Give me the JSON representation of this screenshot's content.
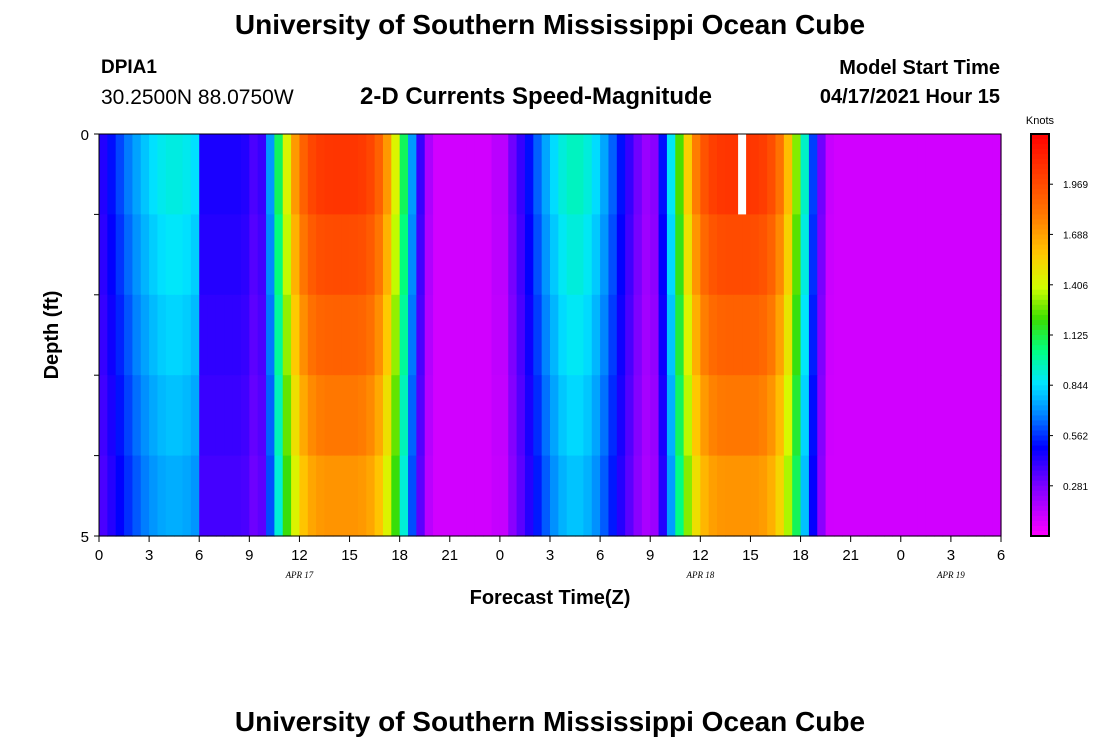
{
  "header": {
    "title": "University of Southern Mississippi Ocean Cube",
    "station_id": "DPIA1",
    "coords": "30.2500N  88.0750W",
    "chart_title": "2-D Currents Speed-Magnitude",
    "model_start_label": "Model Start Time",
    "model_start_time": "04/17/2021 Hour 15"
  },
  "footer": {
    "title": "University of Southern Mississippi Ocean Cube"
  },
  "chart_data": {
    "type": "heatmap",
    "title": "2-D Currents Speed-Magnitude",
    "xlabel": "Forecast Time(Z)",
    "ylabel": "Depth (ft)",
    "x_tick_labels": [
      "0",
      "3",
      "6",
      "9",
      "12",
      "15",
      "18",
      "21",
      "0",
      "3",
      "6",
      "9",
      "12",
      "15",
      "18",
      "21",
      "0",
      "3",
      "6"
    ],
    "date_labels": [
      {
        "text": "APR 17",
        "hour": 12
      },
      {
        "text": "APR 18",
        "hour": 36
      },
      {
        "text": "APR 19",
        "hour": 51
      }
    ],
    "x_range_hours": [
      0,
      54
    ],
    "y_tick_labels": [
      "0",
      "5"
    ],
    "ylim": [
      0,
      5
    ],
    "depth_levels": 5,
    "colorbar": {
      "label": "Knots",
      "ticks": [
        1.969,
        1.688,
        1.406,
        1.125,
        0.844,
        0.562,
        0.281
      ],
      "range": [
        0,
        2.25
      ]
    },
    "missing_value_marker": {
      "hour": 38.5,
      "level": 0
    }
  }
}
